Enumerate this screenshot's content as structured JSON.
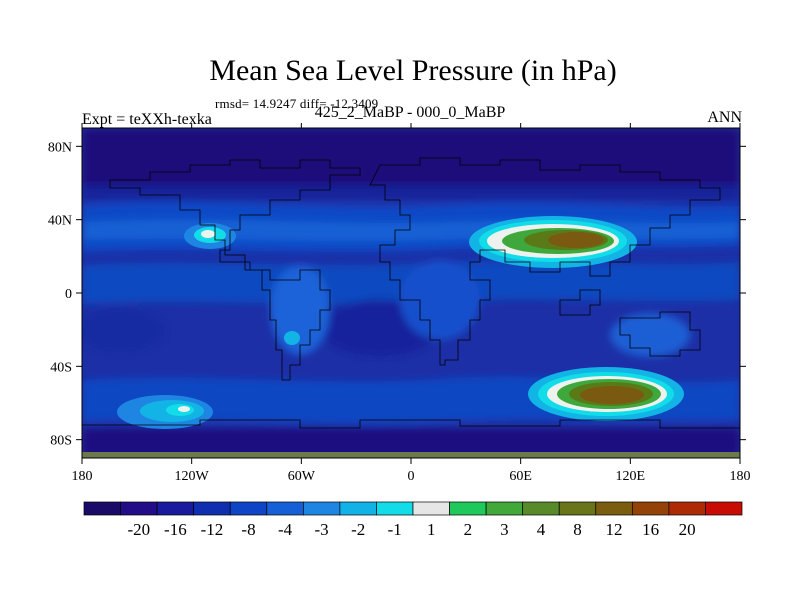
{
  "chart_data": {
    "type": "heatmap",
    "title": "Mean Sea Level Pressure (in hPa)",
    "stats_line": "rmsd= 14.9247 diff= -12.3409",
    "left_label": "Expt = teXXh-texka",
    "center_label": "425_2_MaBP - 000_0_MaBP",
    "right_label": "ANN",
    "xlim": [
      -180,
      180
    ],
    "ylim": [
      -90,
      90
    ],
    "x_ticks": [
      {
        "value": -180,
        "label": "180"
      },
      {
        "value": -120,
        "label": "120W"
      },
      {
        "value": -60,
        "label": "60W"
      },
      {
        "value": 0,
        "label": "0"
      },
      {
        "value": 60,
        "label": "60E"
      },
      {
        "value": 120,
        "label": "120E"
      },
      {
        "value": 180,
        "label": "180"
      }
    ],
    "y_ticks": [
      {
        "value": 80,
        "label": "80N"
      },
      {
        "value": 40,
        "label": "40N"
      },
      {
        "value": 0,
        "label": "0"
      },
      {
        "value": -40,
        "label": "40S"
      },
      {
        "value": -80,
        "label": "80S"
      }
    ],
    "colorbar": {
      "colors": [
        "#1a0b68",
        "#220c88",
        "#1a1a9e",
        "#0f2fb0",
        "#0d45c6",
        "#1560d6",
        "#1e86e2",
        "#12b2e6",
        "#12dce8",
        "#e6e6e6",
        "#1ec85a",
        "#42a83a",
        "#588a2a",
        "#6a7418",
        "#7a5d0e",
        "#954208",
        "#ad2a05",
        "#c80c04"
      ],
      "labels": [
        "-20",
        "-16",
        "-12",
        "-8",
        "-4",
        "-3",
        "-2",
        "-1",
        "1",
        "2",
        "3",
        "4",
        "8",
        "12",
        "16",
        "20"
      ]
    },
    "features": [
      {
        "name": "background-field",
        "center": [
          0,
          0
        ],
        "value": -6
      },
      {
        "name": "arctic-low",
        "center": [
          0,
          80
        ],
        "value": -18
      },
      {
        "name": "northern-midlatitude-band",
        "center": [
          0,
          30
        ],
        "value": -4
      },
      {
        "name": "tropical-band",
        "center": [
          0,
          8
        ],
        "value": -5
      },
      {
        "name": "southern-ocean-trough",
        "center": [
          0,
          -70
        ],
        "value": -14
      },
      {
        "name": "asian-high-north",
        "center": [
          95,
          32
        ],
        "value": 12
      },
      {
        "name": "southern-high-indian-ocean",
        "center": [
          100,
          -60
        ],
        "value": 10
      },
      {
        "name": "pacific-north-high",
        "center": [
          -125,
          35
        ],
        "value": -1
      },
      {
        "name": "pacific-south-high",
        "center": [
          -130,
          -65
        ],
        "value": -2
      },
      {
        "name": "south-atlantic-low",
        "center": [
          -25,
          -15
        ],
        "value": -12
      }
    ]
  }
}
